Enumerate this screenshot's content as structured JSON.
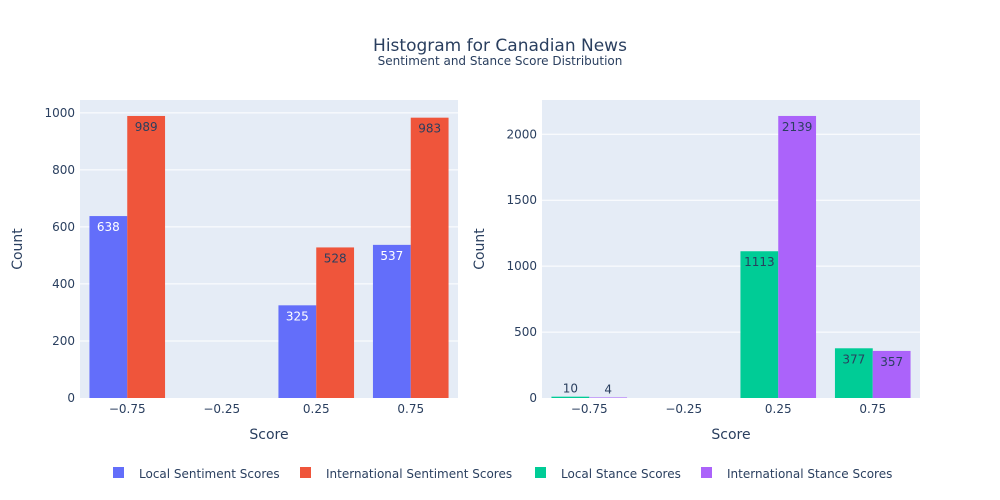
{
  "title": "Histogram for Canadian News",
  "subtitle": "Sentiment and Stance Score Distribution",
  "chart_data": [
    {
      "type": "bar",
      "categories": [
        "−0.75",
        "−0.25",
        "0.25",
        "0.75"
      ],
      "xlabel": "Score",
      "ylabel": "Count",
      "ylim": [
        0,
        1045
      ],
      "yticks": [
        0,
        200,
        400,
        600,
        800,
        1000
      ],
      "grid": true,
      "series": [
        {
          "name": "Local Sentiment Scores",
          "color": "#636efa",
          "values": [
            638,
            0,
            325,
            537
          ]
        },
        {
          "name": "International Sentiment Scores",
          "color": "#ef553b",
          "values": [
            989,
            0,
            528,
            983
          ]
        }
      ]
    },
    {
      "type": "bar",
      "categories": [
        "−0.75",
        "−0.25",
        "0.25",
        "0.75"
      ],
      "xlabel": "Score",
      "ylabel": "Count",
      "ylim": [
        0,
        2260
      ],
      "yticks": [
        0,
        500,
        1000,
        1500,
        2000
      ],
      "grid": true,
      "series": [
        {
          "name": "Local Stance Scores",
          "color": "#00cc96",
          "values": [
            10,
            0,
            1113,
            377
          ]
        },
        {
          "name": "International Stance Scores",
          "color": "#ab63fa",
          "values": [
            4,
            0,
            2139,
            357
          ]
        }
      ]
    }
  ],
  "legend": {
    "placement": "bottom-center",
    "items": [
      {
        "label": "Local Sentiment Scores",
        "color": "#636efa"
      },
      {
        "label": "International Sentiment Scores",
        "color": "#ef553b"
      },
      {
        "label": "Local Stance Scores",
        "color": "#00cc96"
      },
      {
        "label": "International Stance Scores",
        "color": "#ab63fa"
      }
    ]
  }
}
